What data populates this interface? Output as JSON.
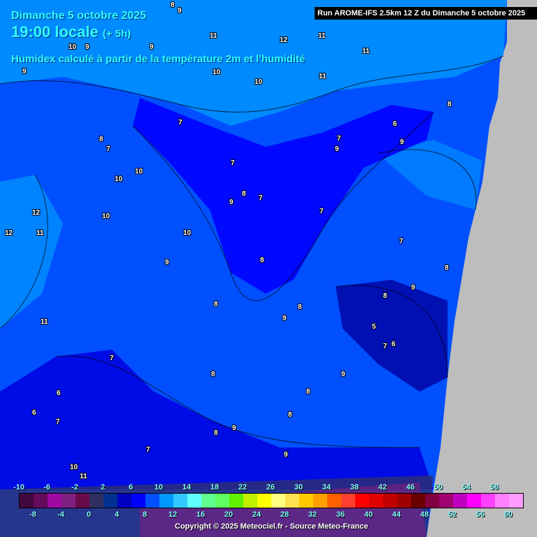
{
  "header": {
    "date": "Dimanche 5 octobre 2025",
    "time": "19:00 locale",
    "offset": "(+ 5h)",
    "subtitle": "Humidex calculé à partir de la température 2m et l'humidité",
    "run": "Run AROME-IFS 2.5km 12 Z du Dimanche 5 octobre 2025"
  },
  "contour_labels": [
    "8",
    "9",
    "11",
    "12",
    "11",
    "11",
    "10",
    "9",
    "9",
    "10",
    "10",
    "11",
    "9",
    "8",
    "7",
    "7",
    "6",
    "9",
    "8",
    "7",
    "10",
    "10",
    "7",
    "9",
    "8",
    "7",
    "12",
    "10",
    "12",
    "11",
    "10",
    "7",
    "9",
    "8",
    "7",
    "8",
    "9",
    "8",
    "8",
    "9",
    "5",
    "7",
    "6",
    "11",
    "7",
    "8",
    "9",
    "6",
    "6",
    "8",
    "7",
    "9",
    "7",
    "8",
    "9",
    "8",
    "8",
    "10",
    "11",
    "9"
  ],
  "colorbar": {
    "top_labels": [
      "-10",
      "-6",
      "-2",
      "2",
      "6",
      "10",
      "14",
      "18",
      "22",
      "26",
      "30",
      "34",
      "38",
      "42",
      "46",
      "50",
      "54",
      "58"
    ],
    "bottom_labels": [
      "-8",
      "-4",
      "0",
      "4",
      "8",
      "12",
      "16",
      "20",
      "24",
      "28",
      "32",
      "36",
      "40",
      "44",
      "48",
      "52",
      "56",
      "60"
    ],
    "colors": [
      "#40083f",
      "#660a5c",
      "#a00aa0",
      "#802080",
      "#6a0a4a",
      "#303060",
      "#003090",
      "#0000c0",
      "#0000ff",
      "#0050ff",
      "#0098ff",
      "#30c8ff",
      "#60ffff",
      "#60ff90",
      "#60ff60",
      "#60f000",
      "#c0f000",
      "#ffff00",
      "#ffff80",
      "#ffe050",
      "#ffc800",
      "#ffa000",
      "#ff6000",
      "#ff4030",
      "#ff0000",
      "#e00000",
      "#c00000",
      "#a00000",
      "#6a0000",
      "#800040",
      "#a00070",
      "#c000c0",
      "#ff00ff",
      "#ff40ff",
      "#ff80ff",
      "#ff9cff"
    ]
  },
  "copyright": "Copyright © 2025 Meteociel.fr - Source Meteo-France"
}
